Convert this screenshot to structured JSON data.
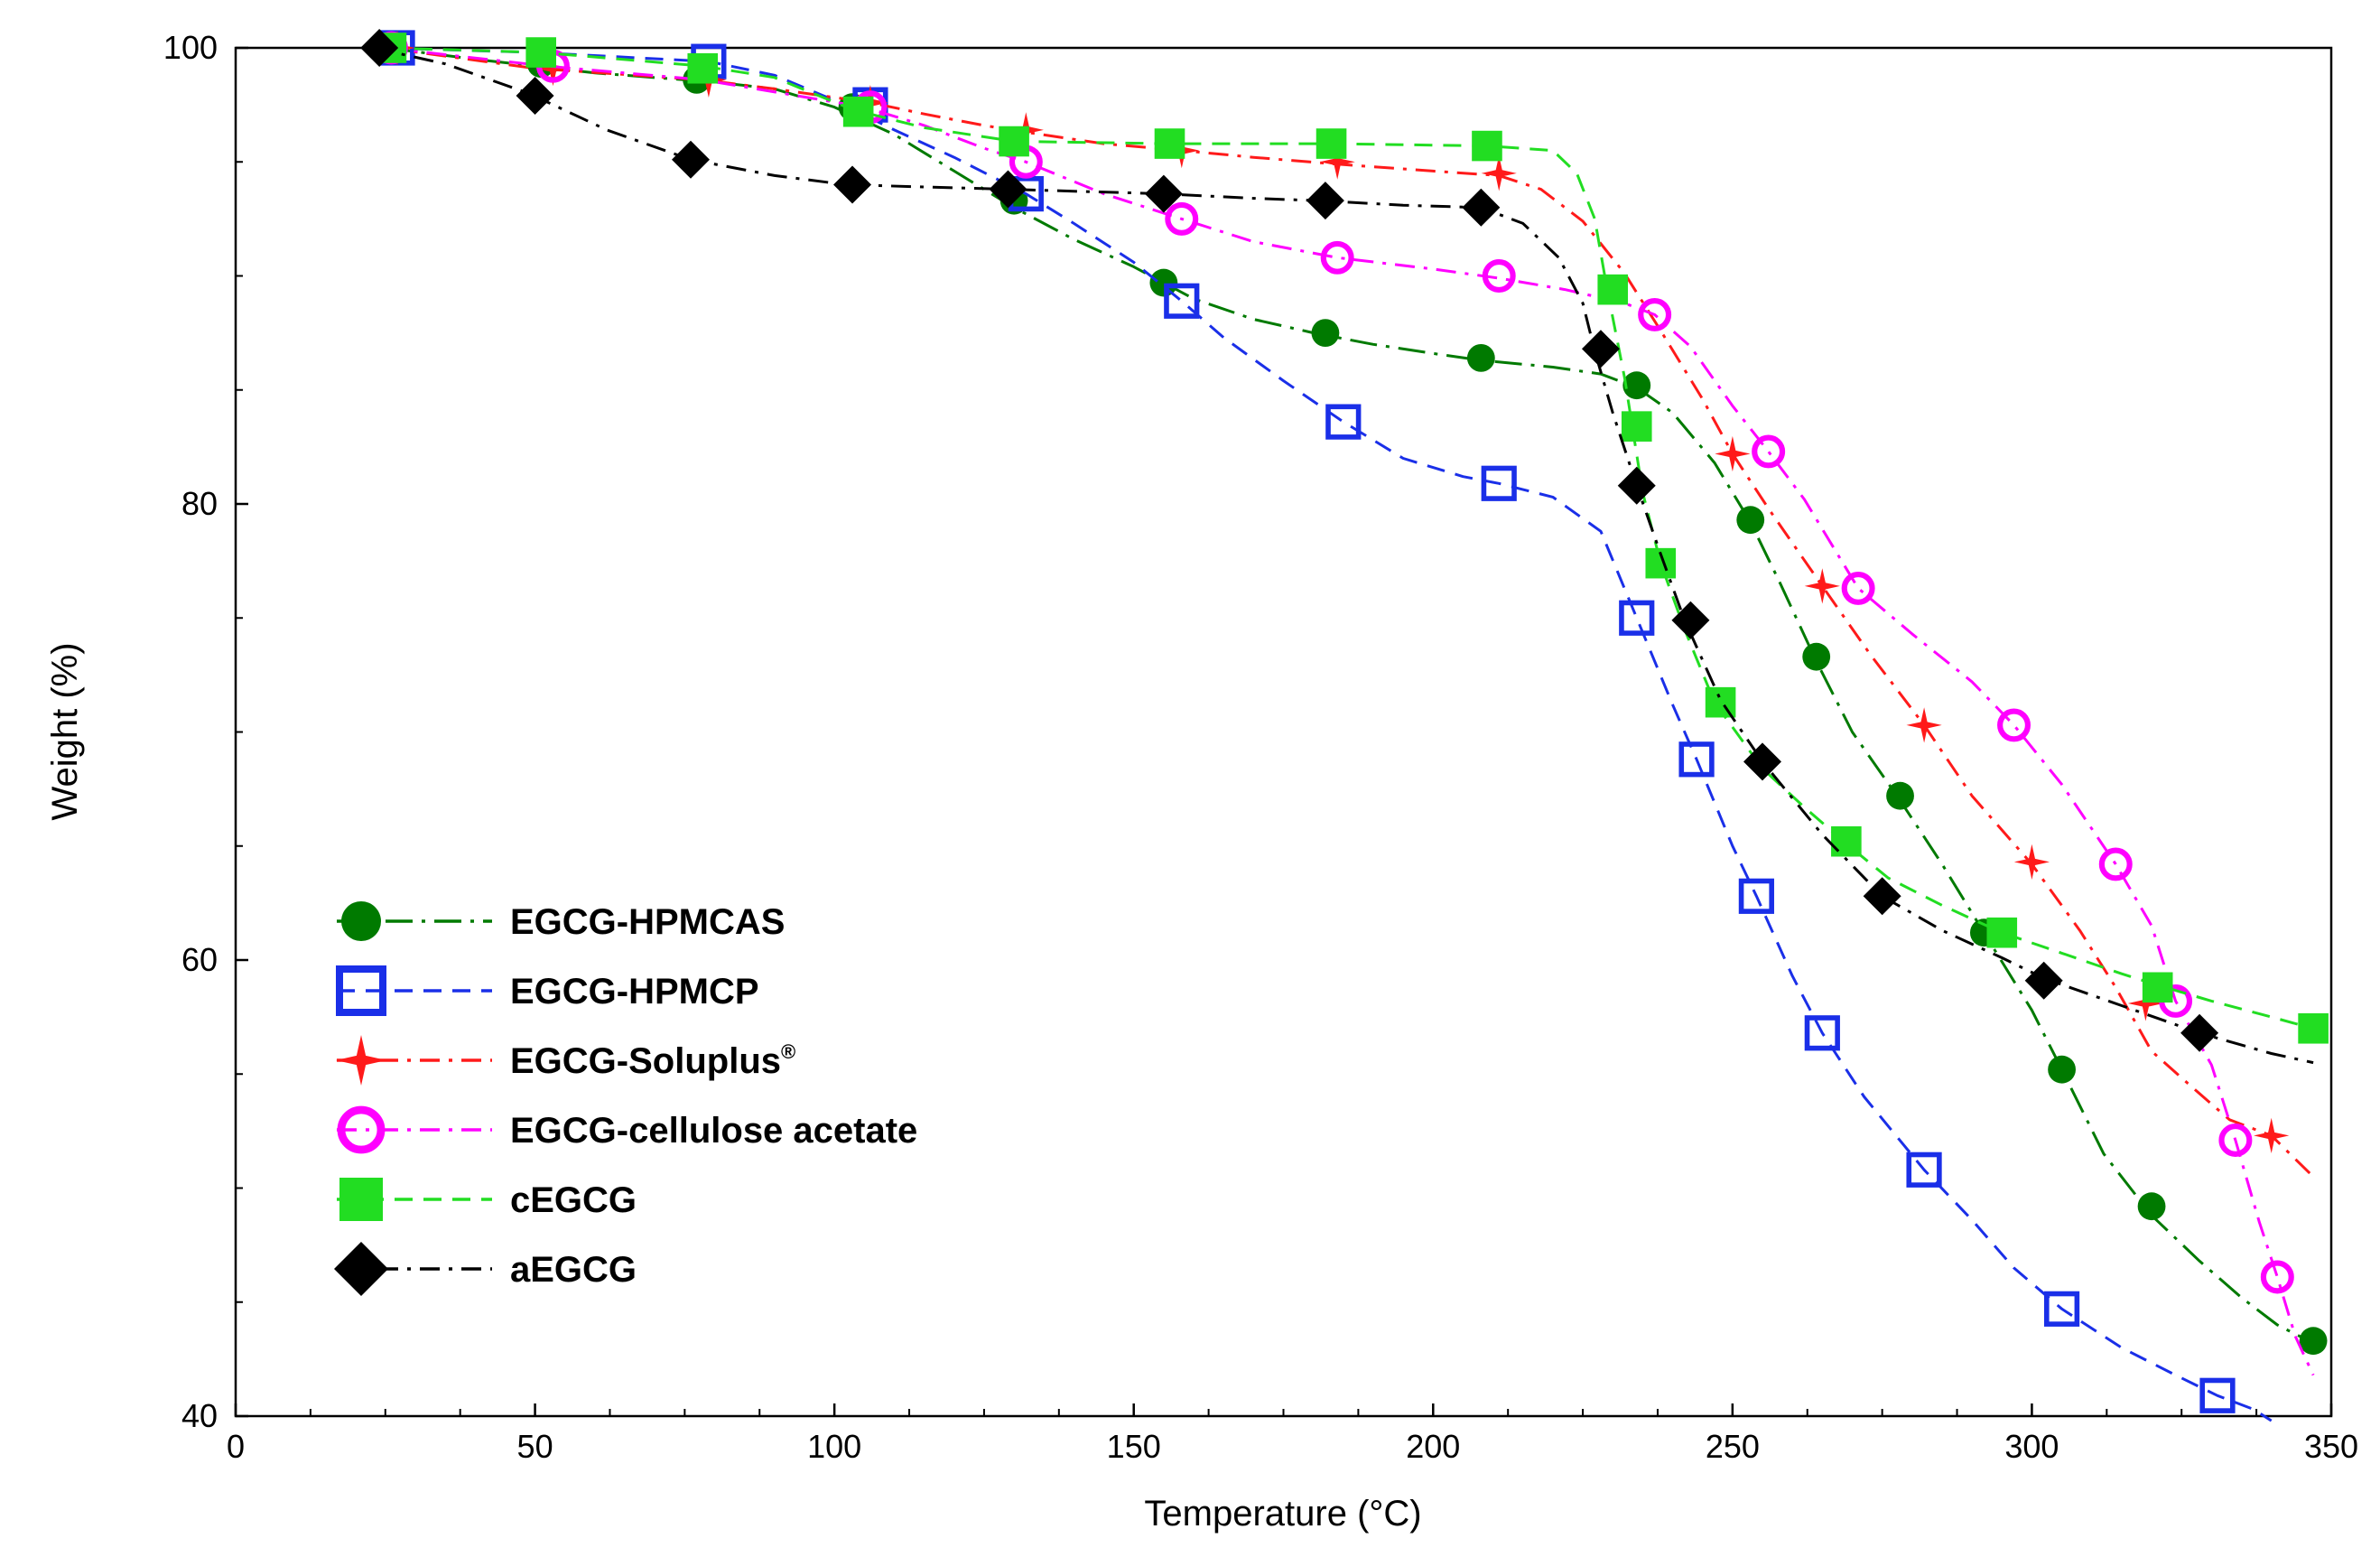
{
  "chart_data": {
    "type": "line",
    "title": "",
    "xlabel": "Temperature (°C)",
    "ylabel": "Weight (%)",
    "xlim": [
      0,
      350
    ],
    "ylim": [
      40,
      100
    ],
    "x_ticks": [
      0,
      50,
      100,
      150,
      200,
      250,
      300,
      350
    ],
    "y_ticks": [
      40,
      60,
      80,
      100
    ],
    "grid": false,
    "legend_position": "lower-left",
    "series": [
      {
        "name": "EGCG-HPMCAS",
        "label_main": "EGCG-HPMCAS",
        "color": "#007a00",
        "dash": "long-dash-dot",
        "marker": "filled-circle",
        "curve": [
          [
            25,
            100
          ],
          [
            40,
            99.5
          ],
          [
            60,
            98.9
          ],
          [
            80,
            98.5
          ],
          [
            90,
            98.2
          ],
          [
            100,
            97.4
          ],
          [
            110,
            96.2
          ],
          [
            120,
            94.6
          ],
          [
            130,
            93.0
          ],
          [
            140,
            91.6
          ],
          [
            150,
            90.4
          ],
          [
            160,
            89.0
          ],
          [
            170,
            88.1
          ],
          [
            180,
            87.5
          ],
          [
            190,
            87.0
          ],
          [
            200,
            86.6
          ],
          [
            208,
            86.3
          ],
          [
            220,
            86.0
          ],
          [
            228,
            85.7
          ],
          [
            234,
            85.1
          ],
          [
            240,
            84.0
          ],
          [
            247,
            81.8
          ],
          [
            253,
            79.2
          ],
          [
            258,
            76.5
          ],
          [
            264,
            73.1
          ],
          [
            270,
            70.0
          ],
          [
            278,
            67.0
          ],
          [
            285,
            64.2
          ],
          [
            292,
            61.2
          ],
          [
            300,
            57.8
          ],
          [
            305,
            55.2
          ],
          [
            312,
            51.5
          ],
          [
            320,
            48.8
          ],
          [
            328,
            46.8
          ],
          [
            335,
            45.2
          ],
          [
            341,
            44.0
          ],
          [
            347,
            43.2
          ]
        ],
        "markers": [
          [
            25,
            100
          ],
          [
            51,
            99.3
          ],
          [
            77,
            98.6
          ],
          [
            103,
            97.4
          ],
          [
            130,
            93.3
          ],
          [
            155,
            89.7
          ],
          [
            182,
            87.5
          ],
          [
            208,
            86.4
          ],
          [
            234,
            85.2
          ],
          [
            253,
            79.3
          ],
          [
            264,
            73.3
          ],
          [
            278,
            67.2
          ],
          [
            292,
            61.2
          ],
          [
            305,
            55.2
          ],
          [
            320,
            49.2
          ],
          [
            347,
            43.3
          ]
        ]
      },
      {
        "name": "EGCG-HPMCP",
        "label_main": "EGCG-HPMCP",
        "color": "#1a2fe8",
        "dash": "dash",
        "marker": "open-square",
        "curve": [
          [
            25,
            100
          ],
          [
            50,
            99.8
          ],
          [
            79,
            99.4
          ],
          [
            90,
            98.8
          ],
          [
            100,
            97.7
          ],
          [
            110,
            96.4
          ],
          [
            120,
            95.2
          ],
          [
            132,
            93.6
          ],
          [
            140,
            92.3
          ],
          [
            150,
            90.6
          ],
          [
            158,
            88.9
          ],
          [
            165,
            87.3
          ],
          [
            175,
            85.4
          ],
          [
            185,
            83.6
          ],
          [
            195,
            82.0
          ],
          [
            205,
            81.2
          ],
          [
            211,
            80.9
          ],
          [
            220,
            80.3
          ],
          [
            228,
            78.8
          ],
          [
            234,
            75.0
          ],
          [
            240,
            71.2
          ],
          [
            244,
            68.8
          ],
          [
            250,
            65.0
          ],
          [
            254,
            62.8
          ],
          [
            260,
            59.3
          ],
          [
            265,
            56.8
          ],
          [
            272,
            54.0
          ],
          [
            282,
            50.8
          ],
          [
            290,
            48.6
          ],
          [
            297,
            46.5
          ],
          [
            305,
            44.7
          ],
          [
            315,
            43.0
          ],
          [
            324,
            41.8
          ],
          [
            331,
            40.9
          ],
          [
            337,
            40.3
          ],
          [
            340,
            39.8
          ]
        ],
        "markers": [
          [
            27,
            100
          ],
          [
            79,
            99.4
          ],
          [
            106,
            97.5
          ],
          [
            132,
            93.6
          ],
          [
            158,
            88.9
          ],
          [
            185,
            83.6
          ],
          [
            211,
            80.9
          ],
          [
            234,
            75.0
          ],
          [
            244,
            68.8
          ],
          [
            254,
            62.8
          ],
          [
            265,
            56.8
          ],
          [
            282,
            50.8
          ],
          [
            305,
            44.7
          ],
          [
            331,
            40.9
          ]
        ]
      },
      {
        "name": "EGCG-Soluplus®",
        "label_main": "EGCG-Soluplus",
        "label_sup": "®",
        "color": "#ff1a1a",
        "dash": "dash-dot",
        "marker": "star",
        "curve": [
          [
            25,
            100
          ],
          [
            50,
            99.1
          ],
          [
            78,
            98.6
          ],
          [
            90,
            98.2
          ],
          [
            106,
            97.6
          ],
          [
            115,
            97.1
          ],
          [
            125,
            96.6
          ],
          [
            132,
            96.3
          ],
          [
            145,
            95.8
          ],
          [
            158,
            95.5
          ],
          [
            170,
            95.2
          ],
          [
            184,
            94.9
          ],
          [
            200,
            94.6
          ],
          [
            211,
            94.4
          ],
          [
            218,
            93.8
          ],
          [
            225,
            92.4
          ],
          [
            232,
            90.1
          ],
          [
            238,
            87.6
          ],
          [
            245,
            84.6
          ],
          [
            250,
            82.2
          ],
          [
            256,
            79.8
          ],
          [
            265,
            76.4
          ],
          [
            273,
            73.4
          ],
          [
            282,
            70.3
          ],
          [
            290,
            67.2
          ],
          [
            300,
            64.2
          ],
          [
            308,
            61.3
          ],
          [
            314,
            58.8
          ],
          [
            320,
            56.0
          ],
          [
            326,
            54.6
          ],
          [
            333,
            53.0
          ],
          [
            340,
            52.3
          ],
          [
            347,
            50.5
          ]
        ],
        "markers": [
          [
            27,
            100
          ],
          [
            53,
            99.1
          ],
          [
            79,
            98.6
          ],
          [
            106,
            97.6
          ],
          [
            132,
            96.4
          ],
          [
            158,
            95.5
          ],
          [
            184,
            95.0
          ],
          [
            211,
            94.5
          ],
          [
            250,
            82.2
          ],
          [
            265,
            76.4
          ],
          [
            282,
            70.3
          ],
          [
            300,
            64.3
          ],
          [
            319,
            58.1
          ],
          [
            340,
            52.3
          ]
        ]
      },
      {
        "name": "EGCG-cellulose acetate",
        "label_main": "EGCG-cellulose acetate",
        "color": "#ff00ff",
        "dash": "dash-dot",
        "marker": "open-circle",
        "curve": [
          [
            25,
            100
          ],
          [
            52,
            99.2
          ],
          [
            78,
            98.6
          ],
          [
            105,
            97.4
          ],
          [
            115,
            96.6
          ],
          [
            125,
            95.6
          ],
          [
            132,
            95.0
          ],
          [
            145,
            93.6
          ],
          [
            158,
            92.5
          ],
          [
            170,
            91.5
          ],
          [
            184,
            90.8
          ],
          [
            200,
            90.3
          ],
          [
            211,
            89.9
          ],
          [
            222,
            89.4
          ],
          [
            232,
            88.8
          ],
          [
            237,
            88.3
          ],
          [
            243,
            86.9
          ],
          [
            250,
            84.3
          ],
          [
            256,
            82.3
          ],
          [
            262,
            80.2
          ],
          [
            268,
            77.6
          ],
          [
            271,
            76.3
          ],
          [
            280,
            74.3
          ],
          [
            290,
            72.2
          ],
          [
            297,
            70.3
          ],
          [
            305,
            67.7
          ],
          [
            314,
            64.2
          ],
          [
            320,
            61.5
          ],
          [
            324,
            58.2
          ],
          [
            330,
            55.4
          ],
          [
            334,
            52.1
          ],
          [
            338,
            48.5
          ],
          [
            341,
            46.1
          ],
          [
            344,
            43.5
          ],
          [
            347,
            41.8
          ]
        ],
        "markers": [
          [
            26,
            100
          ],
          [
            53,
            99.2
          ],
          [
            106,
            97.4
          ],
          [
            132,
            95.0
          ],
          [
            158,
            92.5
          ],
          [
            184,
            90.8
          ],
          [
            211,
            90.0
          ],
          [
            237,
            88.3
          ],
          [
            256,
            82.3
          ],
          [
            271,
            76.3
          ],
          [
            297,
            70.3
          ],
          [
            314,
            64.2
          ],
          [
            324,
            58.2
          ],
          [
            334,
            52.1
          ],
          [
            341,
            46.1
          ]
        ]
      },
      {
        "name": "cEGCG",
        "label_main": "cEGCG",
        "color": "#22dd22",
        "dash": "dash",
        "marker": "filled-square",
        "curve": [
          [
            25,
            100
          ],
          [
            51,
            99.8
          ],
          [
            78,
            99.2
          ],
          [
            90,
            98.7
          ],
          [
            103,
            97.3
          ],
          [
            115,
            96.5
          ],
          [
            130,
            95.9
          ],
          [
            156,
            95.8
          ],
          [
            183,
            95.8
          ],
          [
            209,
            95.7
          ],
          [
            220,
            95.5
          ],
          [
            224,
            94.5
          ],
          [
            227,
            92.5
          ],
          [
            229,
            89.5
          ],
          [
            232,
            85.5
          ],
          [
            235,
            80.5
          ],
          [
            238,
            77.4
          ],
          [
            242,
            74.5
          ],
          [
            247,
            71.3
          ],
          [
            255,
            68.4
          ],
          [
            262,
            66.7
          ],
          [
            269,
            65.1
          ],
          [
            276,
            63.6
          ],
          [
            285,
            62.4
          ],
          [
            295,
            61.2
          ],
          [
            305,
            60.3
          ],
          [
            315,
            59.4
          ],
          [
            321,
            58.9
          ],
          [
            330,
            58.2
          ],
          [
            340,
            57.5
          ],
          [
            347,
            57.0
          ]
        ],
        "markers": [
          [
            26,
            100
          ],
          [
            51,
            99.8
          ],
          [
            78,
            99.1
          ],
          [
            104,
            97.2
          ],
          [
            130,
            95.9
          ],
          [
            156,
            95.8
          ],
          [
            183,
            95.8
          ],
          [
            209,
            95.7
          ],
          [
            230,
            89.4
          ],
          [
            234,
            83.4
          ],
          [
            238,
            77.4
          ],
          [
            248,
            71.3
          ],
          [
            269,
            65.2
          ],
          [
            295,
            61.2
          ],
          [
            321,
            58.8
          ],
          [
            347,
            57.0
          ]
        ]
      },
      {
        "name": "aEGCG",
        "label_main": "aEGCG",
        "color": "#000000",
        "dash": "dash-dot",
        "marker": "diamond",
        "curve": [
          [
            23,
            100
          ],
          [
            35,
            99.3
          ],
          [
            49,
            98.0
          ],
          [
            62,
            96.4
          ],
          [
            76,
            95.1
          ],
          [
            90,
            94.4
          ],
          [
            102,
            94.0
          ],
          [
            115,
            93.9
          ],
          [
            129,
            93.8
          ],
          [
            142,
            93.7
          ],
          [
            155,
            93.6
          ],
          [
            170,
            93.4
          ],
          [
            181,
            93.3
          ],
          [
            195,
            93.1
          ],
          [
            208,
            93.0
          ],
          [
            215,
            92.3
          ],
          [
            221,
            90.8
          ],
          [
            225,
            88.8
          ],
          [
            227,
            86.7
          ],
          [
            230,
            84.0
          ],
          [
            234,
            80.8
          ],
          [
            238,
            77.8
          ],
          [
            242,
            74.9
          ],
          [
            248,
            71.4
          ],
          [
            255,
            68.7
          ],
          [
            265,
            65.5
          ],
          [
            275,
            62.8
          ],
          [
            285,
            61.3
          ],
          [
            295,
            60.1
          ],
          [
            302,
            59.2
          ],
          [
            315,
            58.0
          ],
          [
            328,
            56.8
          ],
          [
            340,
            55.9
          ],
          [
            347,
            55.5
          ]
        ],
        "markers": [
          [
            24,
            100
          ],
          [
            50,
            97.9
          ],
          [
            76,
            95.1
          ],
          [
            103,
            94.0
          ],
          [
            129,
            93.8
          ],
          [
            155,
            93.6
          ],
          [
            182,
            93.3
          ],
          [
            208,
            93.0
          ],
          [
            228,
            86.8
          ],
          [
            234,
            80.8
          ],
          [
            243,
            74.9
          ],
          [
            255,
            68.7
          ],
          [
            275,
            62.8
          ],
          [
            302,
            59.1
          ],
          [
            328,
            56.8
          ]
        ]
      }
    ]
  }
}
